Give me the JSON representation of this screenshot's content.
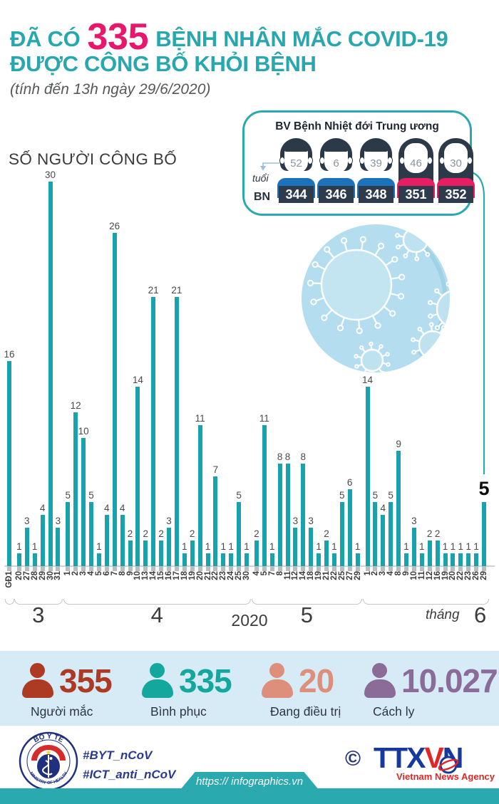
{
  "title": {
    "prefix": "ĐÃ CÓ",
    "count": "335",
    "suffix": "BỆNH NHÂN MẮC COVID-19",
    "line2": "ĐƯỢC CÔNG BỐ KHỎI BỆNH",
    "subtitle": "(tính đến 13h ngày 29/6/2020)"
  },
  "hospital_box": {
    "title": "BV Bệnh Nhiệt đới Trung ương",
    "age_label": "tuổi",
    "bn_label": "BN",
    "patients": [
      {
        "age": "52",
        "bn": "344",
        "gender": "male"
      },
      {
        "age": "6",
        "bn": "346",
        "gender": "male"
      },
      {
        "age": "39",
        "bn": "348",
        "gender": "male"
      },
      {
        "age": "46",
        "bn": "351",
        "gender": "female"
      },
      {
        "age": "30",
        "bn": "352",
        "gender": "female"
      }
    ]
  },
  "chart_data": {
    "type": "bar",
    "title": "SỐ NGƯỜI CÔNG BỐ",
    "year_label": "2020",
    "month_axis_label": "tháng",
    "bar_color": "#18a2ab",
    "highlight_last": true,
    "groups": [
      {
        "month": "",
        "labels": [
          "GĐ1"
        ],
        "values": [
          16
        ]
      },
      {
        "month": "3",
        "labels": [
          "20",
          "27",
          "28",
          "29",
          "30",
          "31"
        ],
        "values": [
          1,
          3,
          1,
          4,
          30,
          3
        ]
      },
      {
        "month": "4",
        "labels": [
          "1",
          "2",
          "3",
          "4",
          "5",
          "6",
          "7",
          "8",
          "9",
          "10",
          "13",
          "14",
          "15",
          "16",
          "17",
          "18",
          "19",
          "20",
          "21",
          "22",
          "23",
          "24",
          "25",
          "30"
        ],
        "values": [
          5,
          12,
          10,
          5,
          1,
          4,
          26,
          4,
          2,
          14,
          2,
          21,
          2,
          3,
          21,
          1,
          2,
          11,
          1,
          7,
          1,
          1,
          5,
          1
        ]
      },
      {
        "month": "5",
        "labels": [
          "4",
          "5",
          "7",
          "8",
          "11",
          "12",
          "14",
          "18",
          "19",
          "21",
          "22",
          "25",
          "27",
          "29"
        ],
        "values": [
          2,
          11,
          1,
          8,
          8,
          3,
          8,
          3,
          1,
          2,
          1,
          5,
          6,
          1
        ]
      },
      {
        "month": "6",
        "labels": [
          "1",
          "2",
          "3",
          "4",
          "8",
          "9",
          "10",
          "11",
          "12",
          "16",
          "19",
          "20",
          "22",
          "23",
          "26",
          "29"
        ],
        "values": [
          14,
          5,
          4,
          5,
          9,
          1,
          3,
          1,
          2,
          2,
          1,
          1,
          1,
          1,
          1,
          5
        ]
      }
    ]
  },
  "stats": {
    "items": [
      {
        "value": "355",
        "label": "Người mắc",
        "color": "#ad3a22"
      },
      {
        "value": "335",
        "label": "Bình phục",
        "color": "#14a79e"
      },
      {
        "value": "20",
        "label": "Đang điều trị",
        "color": "#dd8f7b"
      },
      {
        "value": "10.027",
        "label": "Cách ly",
        "color": "#8b6b97"
      }
    ]
  },
  "footer": {
    "logo_top": "BỘ Y TẾ",
    "logo_bottom": "MINISTRY OF HEALTH",
    "hashtag1": "#BYT_nCoV",
    "hashtag2": "#ICT_anti_nCoV",
    "copyright": "©",
    "agency": "TTXVN",
    "agency_sub": "Vietnam News Agency",
    "url": "https:// infographics.vn"
  },
  "colors": {
    "accent_teal": "#28a7ad",
    "accent_pink": "#e8176b",
    "bar_teal": "#18a2ab",
    "band_blue": "#d7ebf7",
    "shirt_blue": "#1c73bb",
    "shirt_pink": "#e71e61",
    "plate_navy": "#2e3b4d",
    "footer_navy": "#2b3990",
    "agency_red": "#e02727"
  }
}
